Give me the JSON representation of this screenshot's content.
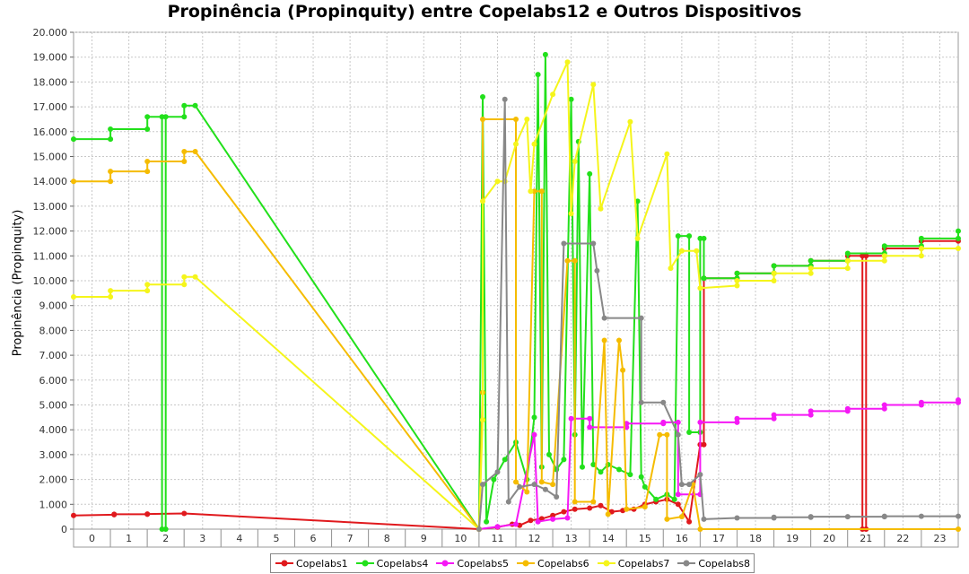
{
  "chart_data": {
    "type": "line",
    "title": "Propinência (Propinquity) entre Copelabs12 e Outros Dispositivos",
    "xlabel": "",
    "ylabel": "Propinência (Propinquity)",
    "categories": [
      "0",
      "1",
      "2",
      "3",
      "4",
      "5",
      "6",
      "7",
      "8",
      "9",
      "10",
      "11",
      "12",
      "13",
      "14",
      "15",
      "16",
      "17",
      "18",
      "19",
      "20",
      "21",
      "22",
      "23"
    ],
    "ylim": [
      0,
      20000
    ],
    "yticks": [
      "0",
      "1.000",
      "2.000",
      "3.000",
      "4.000",
      "5.000",
      "6.000",
      "7.000",
      "8.000",
      "9.000",
      "10.000",
      "11.000",
      "12.000",
      "13.000",
      "14.000",
      "15.000",
      "16.000",
      "17.000",
      "18.000",
      "19.000",
      "20.000"
    ],
    "grid": true,
    "legend": "bottom",
    "series": [
      {
        "name": "Copelabs1",
        "color": "#e0191d",
        "points": [
          [
            -0.5,
            550
          ],
          [
            0.6,
            580
          ],
          [
            0.6,
            600
          ],
          [
            1.5,
            600
          ],
          [
            1.5,
            610
          ],
          [
            2.5,
            630
          ],
          [
            10.5,
            0
          ],
          [
            11.0,
            80
          ],
          [
            11.4,
            200
          ],
          [
            11.6,
            150
          ],
          [
            11.9,
            350
          ],
          [
            12.2,
            420
          ],
          [
            12.5,
            550
          ],
          [
            12.8,
            700
          ],
          [
            13.1,
            800
          ],
          [
            13.5,
            850
          ],
          [
            13.8,
            950
          ],
          [
            14.1,
            700
          ],
          [
            14.4,
            750
          ],
          [
            14.7,
            800
          ],
          [
            15.0,
            1000
          ],
          [
            15.3,
            1100
          ],
          [
            15.6,
            1200
          ],
          [
            15.9,
            1000
          ],
          [
            16.2,
            300
          ],
          [
            16.5,
            3400
          ],
          [
            16.6,
            3400
          ],
          [
            16.6,
            10100
          ],
          [
            17.5,
            10100
          ],
          [
            17.5,
            10300
          ],
          [
            18.5,
            10300
          ],
          [
            18.5,
            10600
          ],
          [
            19.5,
            10600
          ],
          [
            19.5,
            10800
          ],
          [
            20.5,
            10800
          ],
          [
            20.5,
            11000
          ],
          [
            20.9,
            11000
          ],
          [
            20.9,
            0
          ],
          [
            21.0,
            0
          ],
          [
            21.0,
            11000
          ],
          [
            21.5,
            11000
          ],
          [
            21.5,
            11300
          ],
          [
            22.5,
            11300
          ],
          [
            22.5,
            11600
          ],
          [
            23.5,
            11600
          ]
        ]
      },
      {
        "name": "Copelabs4",
        "color": "#22e01b",
        "points": [
          [
            -0.5,
            15700
          ],
          [
            0.5,
            15700
          ],
          [
            0.5,
            16100
          ],
          [
            1.5,
            16100
          ],
          [
            1.5,
            16600
          ],
          [
            1.9,
            16600
          ],
          [
            1.9,
            0
          ],
          [
            2.0,
            0
          ],
          [
            2.0,
            16600
          ],
          [
            2.5,
            16600
          ],
          [
            2.5,
            17050
          ],
          [
            2.8,
            17050
          ],
          [
            10.5,
            0
          ],
          [
            10.6,
            17400
          ],
          [
            10.7,
            300
          ],
          [
            10.9,
            2000
          ],
          [
            11.2,
            2800
          ],
          [
            11.5,
            3500
          ],
          [
            11.8,
            2000
          ],
          [
            12.0,
            4500
          ],
          [
            12.1,
            18300
          ],
          [
            12.2,
            2500
          ],
          [
            12.3,
            19100
          ],
          [
            12.4,
            3000
          ],
          [
            12.6,
            2400
          ],
          [
            12.8,
            2800
          ],
          [
            13.0,
            17300
          ],
          [
            13.1,
            3800
          ],
          [
            13.2,
            15600
          ],
          [
            13.3,
            2500
          ],
          [
            13.5,
            14300
          ],
          [
            13.6,
            2600
          ],
          [
            13.8,
            2300
          ],
          [
            14.0,
            2600
          ],
          [
            14.3,
            2400
          ],
          [
            14.6,
            2200
          ],
          [
            14.8,
            13200
          ],
          [
            14.9,
            2100
          ],
          [
            15.0,
            1700
          ],
          [
            15.3,
            1200
          ],
          [
            15.6,
            1400
          ],
          [
            15.8,
            1200
          ],
          [
            15.9,
            11800
          ],
          [
            16.2,
            11800
          ],
          [
            16.2,
            3900
          ],
          [
            16.5,
            3900
          ],
          [
            16.5,
            11700
          ],
          [
            16.6,
            11700
          ],
          [
            16.6,
            10100
          ],
          [
            17.5,
            10100
          ],
          [
            17.5,
            10300
          ],
          [
            18.5,
            10300
          ],
          [
            18.5,
            10600
          ],
          [
            19.5,
            10600
          ],
          [
            19.5,
            10800
          ],
          [
            20.5,
            10800
          ],
          [
            20.5,
            11100
          ],
          [
            21.5,
            11100
          ],
          [
            21.5,
            11400
          ],
          [
            22.5,
            11400
          ],
          [
            22.5,
            11700
          ],
          [
            23.5,
            11700
          ],
          [
            23.5,
            12000
          ]
        ]
      },
      {
        "name": "Copelabs5",
        "color": "#f519f5",
        "points": [
          [
            10.5,
            0
          ],
          [
            11.0,
            100
          ],
          [
            11.5,
            200
          ],
          [
            12.0,
            3800
          ],
          [
            12.1,
            300
          ],
          [
            12.5,
            400
          ],
          [
            12.9,
            450
          ],
          [
            13.0,
            4450
          ],
          [
            13.5,
            4450
          ],
          [
            13.5,
            4100
          ],
          [
            14.5,
            4100
          ],
          [
            14.5,
            4250
          ],
          [
            15.5,
            4250
          ],
          [
            15.5,
            4300
          ],
          [
            15.9,
            4300
          ],
          [
            15.9,
            1400
          ],
          [
            16.5,
            1400
          ],
          [
            16.5,
            4300
          ],
          [
            17.5,
            4300
          ],
          [
            17.5,
            4450
          ],
          [
            18.5,
            4450
          ],
          [
            18.5,
            4600
          ],
          [
            19.5,
            4600
          ],
          [
            19.5,
            4750
          ],
          [
            20.5,
            4750
          ],
          [
            20.5,
            4850
          ],
          [
            21.5,
            4850
          ],
          [
            21.5,
            5000
          ],
          [
            22.5,
            5000
          ],
          [
            22.5,
            5100
          ],
          [
            23.5,
            5100
          ],
          [
            23.5,
            5200
          ]
        ]
      },
      {
        "name": "Copelabs6",
        "color": "#f5bc00",
        "points": [
          [
            -0.5,
            14000
          ],
          [
            0.5,
            14000
          ],
          [
            0.5,
            14400
          ],
          [
            1.5,
            14400
          ],
          [
            1.5,
            14800
          ],
          [
            2.5,
            14800
          ],
          [
            2.5,
            15200
          ],
          [
            2.8,
            15200
          ],
          [
            10.5,
            0
          ],
          [
            10.6,
            5500
          ],
          [
            10.6,
            16500
          ],
          [
            11.5,
            16500
          ],
          [
            11.5,
            1900
          ],
          [
            11.8,
            1500
          ],
          [
            12.0,
            13600
          ],
          [
            12.2,
            13600
          ],
          [
            12.2,
            1900
          ],
          [
            12.5,
            1800
          ],
          [
            12.9,
            10800
          ],
          [
            13.1,
            10800
          ],
          [
            13.1,
            1100
          ],
          [
            13.6,
            1100
          ],
          [
            13.9,
            7600
          ],
          [
            14.0,
            600
          ],
          [
            14.3,
            7600
          ],
          [
            14.4,
            6400
          ],
          [
            14.5,
            800
          ],
          [
            15.0,
            900
          ],
          [
            15.4,
            3800
          ],
          [
            15.6,
            3800
          ],
          [
            15.6,
            400
          ],
          [
            16.0,
            500
          ],
          [
            16.3,
            1800
          ],
          [
            16.5,
            0
          ],
          [
            23.5,
            0
          ]
        ]
      },
      {
        "name": "Copelabs7",
        "color": "#f5f51b",
        "points": [
          [
            -0.5,
            9350
          ],
          [
            0.5,
            9350
          ],
          [
            0.5,
            9600
          ],
          [
            1.5,
            9600
          ],
          [
            1.5,
            9850
          ],
          [
            2.5,
            9850
          ],
          [
            2.5,
            10150
          ],
          [
            2.8,
            10150
          ],
          [
            10.5,
            0
          ],
          [
            10.6,
            4400
          ],
          [
            10.6,
            13200
          ],
          [
            11.0,
            14000
          ],
          [
            11.2,
            14000
          ],
          [
            11.5,
            15500
          ],
          [
            11.8,
            16500
          ],
          [
            11.9,
            13600
          ],
          [
            12.0,
            15500
          ],
          [
            12.5,
            17500
          ],
          [
            12.9,
            18800
          ],
          [
            13.0,
            12700
          ],
          [
            13.1,
            14800
          ],
          [
            13.6,
            17900
          ],
          [
            13.8,
            12900
          ],
          [
            14.6,
            16400
          ],
          [
            14.8,
            11700
          ],
          [
            15.6,
            15100
          ],
          [
            15.7,
            10500
          ],
          [
            16.0,
            11200
          ],
          [
            16.4,
            11200
          ],
          [
            16.5,
            9700
          ],
          [
            17.5,
            9800
          ],
          [
            17.5,
            10000
          ],
          [
            18.5,
            10000
          ],
          [
            18.5,
            10300
          ],
          [
            19.5,
            10300
          ],
          [
            19.5,
            10500
          ],
          [
            20.5,
            10500
          ],
          [
            20.5,
            10800
          ],
          [
            21.5,
            10800
          ],
          [
            21.5,
            11000
          ],
          [
            22.5,
            11000
          ],
          [
            22.5,
            11300
          ],
          [
            23.5,
            11300
          ]
        ]
      },
      {
        "name": "Copelabs8",
        "color": "#888888",
        "points": [
          [
            10.5,
            0
          ],
          [
            10.6,
            1800
          ],
          [
            11.0,
            2300
          ],
          [
            11.2,
            17300
          ],
          [
            11.3,
            1100
          ],
          [
            11.6,
            1700
          ],
          [
            12.0,
            1800
          ],
          [
            12.3,
            1600
          ],
          [
            12.6,
            1300
          ],
          [
            12.8,
            11500
          ],
          [
            13.6,
            11500
          ],
          [
            13.7,
            10400
          ],
          [
            13.9,
            8500
          ],
          [
            14.9,
            8500
          ],
          [
            14.9,
            5100
          ],
          [
            15.5,
            5100
          ],
          [
            15.9,
            3800
          ],
          [
            16.0,
            1800
          ],
          [
            16.2,
            1800
          ],
          [
            16.5,
            2200
          ],
          [
            16.6,
            400
          ],
          [
            17.5,
            450
          ],
          [
            18.5,
            450
          ],
          [
            18.5,
            480
          ],
          [
            19.5,
            480
          ],
          [
            19.5,
            500
          ],
          [
            20.5,
            500
          ],
          [
            21.5,
            500
          ],
          [
            21.5,
            520
          ],
          [
            22.5,
            520
          ],
          [
            23.5,
            520
          ]
        ]
      }
    ]
  }
}
